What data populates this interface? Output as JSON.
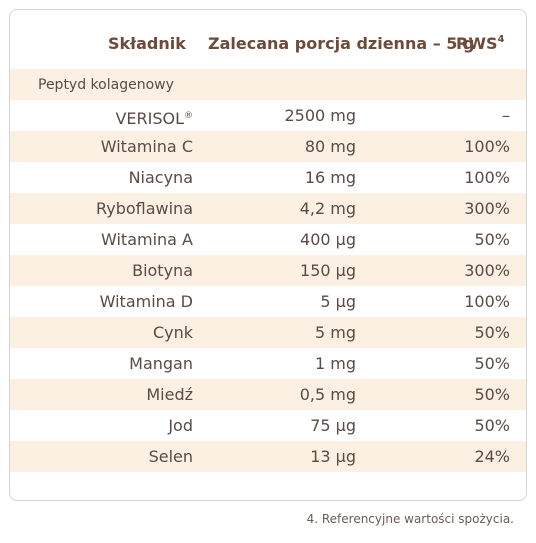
{
  "table": {
    "headers": {
      "ingredient": "Składnik",
      "portion": "Zalecana porcja dzienna – 5 g",
      "rws": "RWS",
      "rws_footnote_mark": "4"
    },
    "rows": [
      {
        "name": "Peptyd kolagenowy",
        "amount": "",
        "rws": "",
        "shaded": true,
        "small": true
      },
      {
        "name": "VERISOL",
        "name_mark": "®",
        "amount": "2500 mg",
        "rws": "–",
        "shaded": false
      },
      {
        "name": "Witamina C",
        "amount": "80 mg",
        "rws": "100%",
        "shaded": true
      },
      {
        "name": "Niacyna",
        "amount": "16 mg",
        "rws": "100%",
        "shaded": false
      },
      {
        "name": "Ryboflawina",
        "amount": "4,2 mg",
        "rws": "300%",
        "shaded": true
      },
      {
        "name": "Witamina A",
        "amount": "400 µg",
        "rws": "50%",
        "shaded": false
      },
      {
        "name": "Biotyna",
        "amount": "150 µg",
        "rws": "300%",
        "shaded": true
      },
      {
        "name": "Witamina D",
        "amount": "5 µg",
        "rws": "100%",
        "shaded": false
      },
      {
        "name": "Cynk",
        "amount": "5 mg",
        "rws": "50%",
        "shaded": true
      },
      {
        "name": "Mangan",
        "amount": "1 mg",
        "rws": "50%",
        "shaded": false
      },
      {
        "name": "Miedź",
        "amount": "0,5 mg",
        "rws": "50%",
        "shaded": true
      },
      {
        "name": "Jod",
        "amount": "75 µg",
        "rws": "50%",
        "shaded": false
      },
      {
        "name": "Selen",
        "amount": "13 µg",
        "rws": "24%",
        "shaded": true
      }
    ]
  },
  "footnote": "4. Referencyjne wartości spożycia.",
  "colors": {
    "header_text": "#6e4a38",
    "body_text": "#5a4b44",
    "row_shade": "#fbf0e2",
    "border": "#d8d4d1"
  }
}
